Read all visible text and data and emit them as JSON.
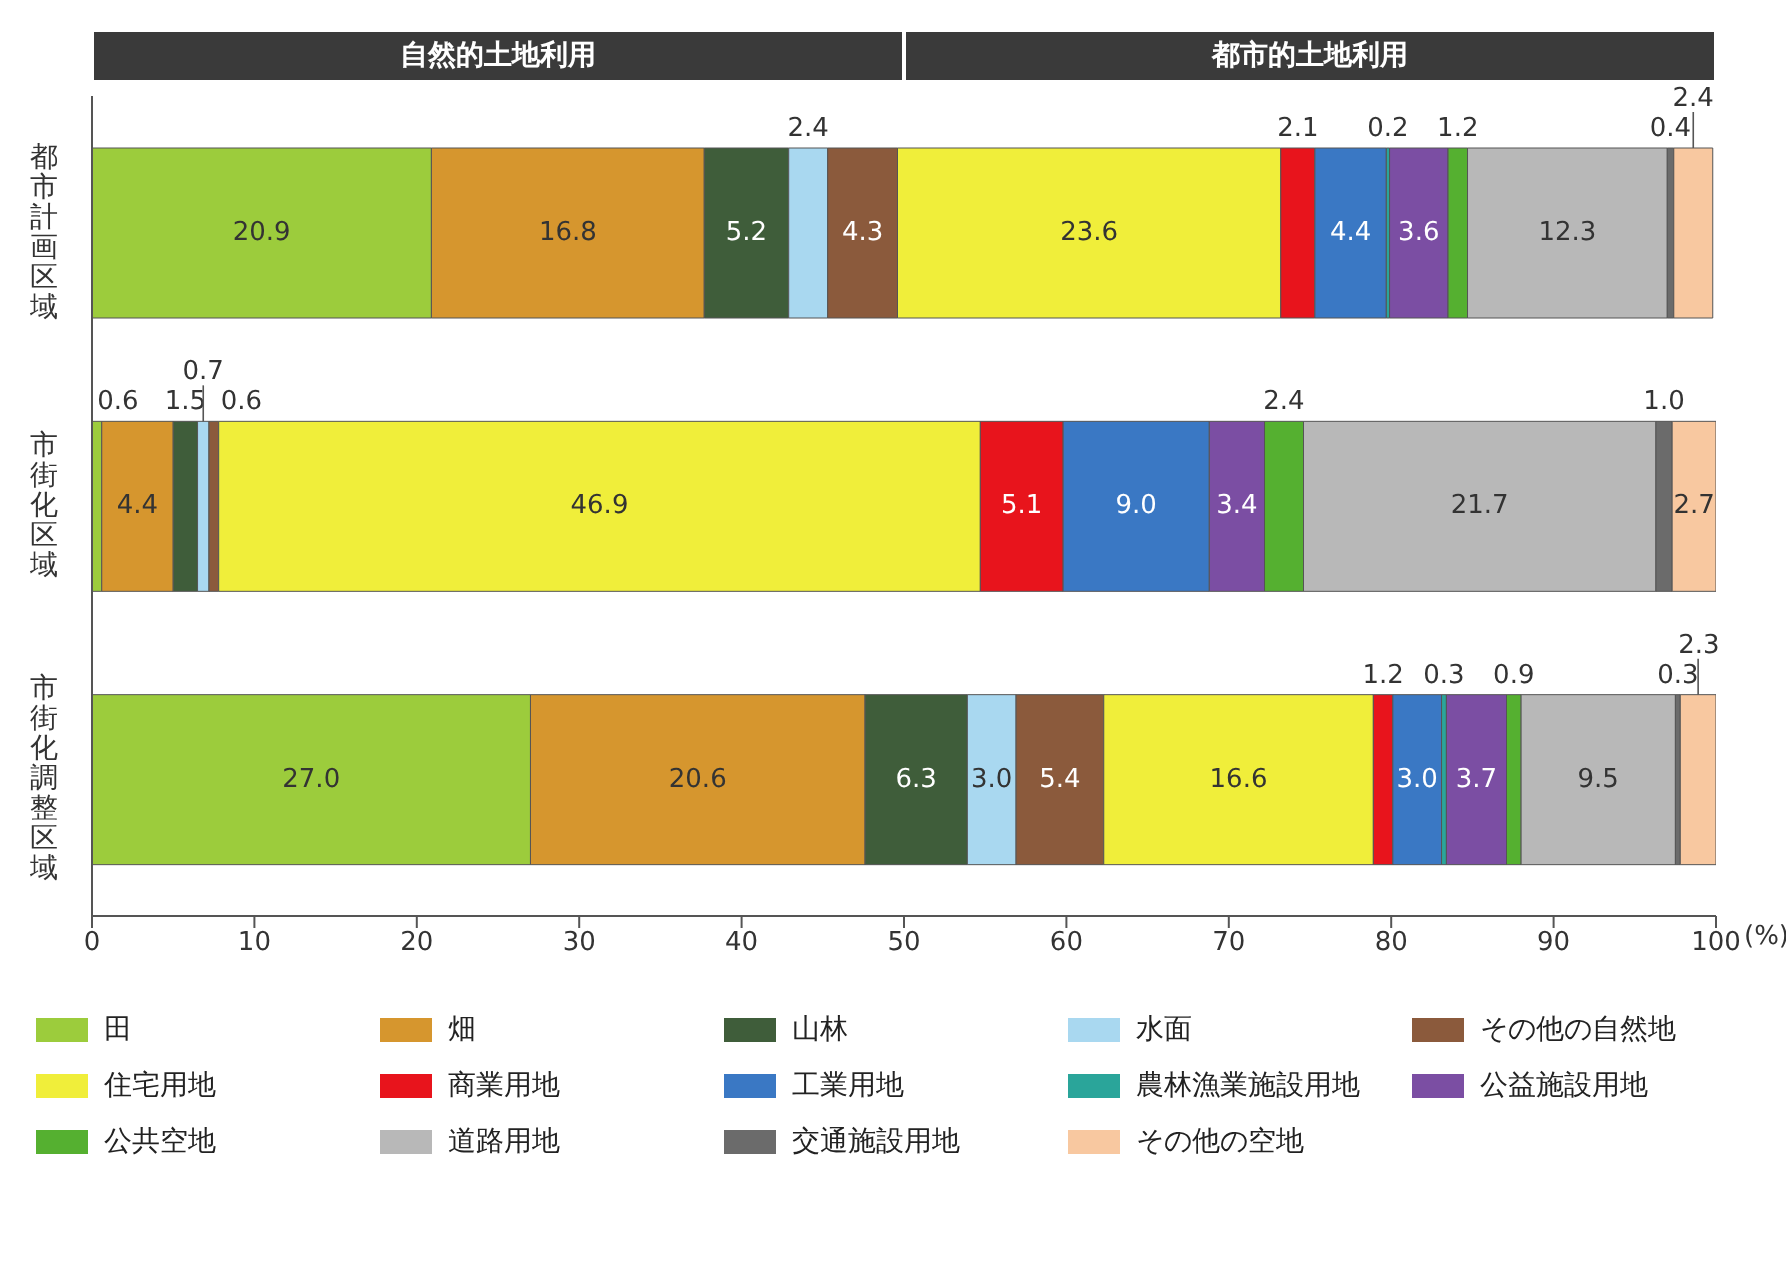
{
  "chart_data": {
    "type": "bar",
    "orientation": "horizontal",
    "stacked": true,
    "categories": [
      "都市計画区域",
      "市街化区域",
      "市街化調整区域"
    ],
    "xlabel": "(%)",
    "xlim": [
      0,
      100
    ],
    "xticks": [
      0,
      10,
      20,
      30,
      40,
      50,
      60,
      70,
      80,
      90,
      100
    ],
    "annotations": [
      "自然的土地利用",
      "都市的土地利用"
    ],
    "legend": "bottom",
    "grid": false,
    "series": [
      {
        "name": "田",
        "color": "#9ccc3c",
        "values": [
          20.9,
          0.6,
          27.0
        ],
        "value_labels": [
          "20.9",
          "0.6",
          "27.0"
        ]
      },
      {
        "name": "畑",
        "color": "#d6962e",
        "values": [
          16.8,
          4.4,
          20.6
        ],
        "value_labels": [
          "16.8",
          "4.4",
          "20.6"
        ]
      },
      {
        "name": "山林",
        "color": "#3f5d3a",
        "values": [
          5.2,
          1.5,
          6.3
        ],
        "value_labels": [
          "5.2",
          "1.5",
          "6.3"
        ]
      },
      {
        "name": "水面",
        "color": "#a9d8f0",
        "values": [
          2.4,
          0.7,
          3.0
        ],
        "value_labels": [
          "2.4",
          "0.7",
          "3.0"
        ]
      },
      {
        "name": "その他の自然地",
        "color": "#8b5a3c",
        "values": [
          4.3,
          0.6,
          5.4
        ],
        "value_labels": [
          "4.3",
          "0.6",
          "5.4"
        ]
      },
      {
        "name": "住宅用地",
        "color": "#f0ee3a",
        "values": [
          23.6,
          46.9,
          16.6
        ],
        "value_labels": [
          "23.6",
          "46.9",
          "16.6"
        ]
      },
      {
        "name": "商業用地",
        "color": "#e8141c",
        "values": [
          2.1,
          5.1,
          1.2
        ],
        "value_labels": [
          "2.1",
          "5.1",
          "1.2"
        ]
      },
      {
        "name": "工業用地",
        "color": "#3a78c4",
        "values": [
          4.4,
          9.0,
          3.0
        ],
        "value_labels": [
          "4.4",
          "9.0",
          "3.0"
        ]
      },
      {
        "name": "農林漁業施設用地",
        "color": "#2aa59a",
        "values": [
          0.2,
          null,
          0.3
        ],
        "value_labels": [
          "0.2",
          null,
          "0.3"
        ]
      },
      {
        "name": "公益施設用地",
        "color": "#7b4ea3",
        "values": [
          3.6,
          3.4,
          3.7
        ],
        "value_labels": [
          "3.6",
          "3.4",
          "3.7"
        ]
      },
      {
        "name": "公共空地",
        "color": "#55b030",
        "values": [
          1.2,
          2.4,
          0.9
        ],
        "value_labels": [
          "1.2",
          "2.4",
          "0.9"
        ]
      },
      {
        "name": "道路用地",
        "color": "#b8b8b8",
        "values": [
          12.3,
          21.7,
          9.5
        ],
        "value_labels": [
          "12.3",
          "21.7",
          "9.5"
        ]
      },
      {
        "name": "交通施設用地",
        "color": "#6b6b6b",
        "values": [
          0.4,
          1.0,
          0.3
        ],
        "value_labels": [
          "0.4",
          "1.0",
          "0.3"
        ]
      },
      {
        "name": "その他の空地",
        "color": "#f8c8a0",
        "values": [
          2.4,
          2.7,
          2.3
        ],
        "value_labels": [
          "2.4",
          "2.7",
          "2.3"
        ]
      }
    ]
  }
}
